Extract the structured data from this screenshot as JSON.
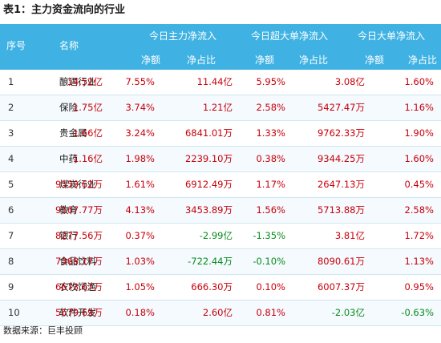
{
  "title": "表1：主力资金流向的行业",
  "header": {
    "col_index": "序号",
    "col_name": "名称",
    "group_main": "今日主力净流入",
    "group_super": "今日超大单净流入",
    "group_large": "今日大单净流入",
    "net": "净额",
    "ratio": "净占比"
  },
  "rows": [
    {
      "no": "1",
      "name": "酿酒行业",
      "main_net": "14.52亿",
      "main_ratio": "7.55%",
      "super_net": "11.44亿",
      "super_ratio": "5.95%",
      "large_net": "3.08亿",
      "large_ratio": "1.60%",
      "super_neg": false,
      "large_neg": false
    },
    {
      "no": "2",
      "name": "保险",
      "main_net": "1.75亿",
      "main_ratio": "3.74%",
      "super_net": "1.21亿",
      "super_ratio": "2.58%",
      "large_net": "5427.47万",
      "large_ratio": "1.16%",
      "super_neg": false,
      "large_neg": false
    },
    {
      "no": "3",
      "name": "贵金属",
      "main_net": "1.66亿",
      "main_ratio": "3.24%",
      "super_net": "6841.01万",
      "super_ratio": "1.33%",
      "large_net": "9762.33万",
      "large_ratio": "1.90%",
      "super_neg": false,
      "large_neg": false
    },
    {
      "no": "4",
      "name": "中药",
      "main_net": "1.16亿",
      "main_ratio": "1.98%",
      "super_net": "2239.10万",
      "super_ratio": "0.38%",
      "large_net": "9344.25万",
      "large_ratio": "1.60%",
      "super_neg": false,
      "large_neg": false
    },
    {
      "no": "5",
      "name": "煤炭行业",
      "main_net": "9559.62万",
      "main_ratio": "1.61%",
      "super_net": "6912.49万",
      "super_ratio": "1.17%",
      "large_net": "2647.13万",
      "large_ratio": "0.45%",
      "super_neg": false,
      "large_neg": false
    },
    {
      "no": "6",
      "name": "教育",
      "main_net": "9167.77万",
      "main_ratio": "4.13%",
      "super_net": "3453.89万",
      "super_ratio": "1.56%",
      "large_net": "5713.88万",
      "large_ratio": "2.58%",
      "super_neg": false,
      "large_neg": false
    },
    {
      "no": "7",
      "name": "银行",
      "main_net": "8277.56万",
      "main_ratio": "0.37%",
      "super_net": "-2.99亿",
      "super_ratio": "-1.35%",
      "large_net": "3.81亿",
      "large_ratio": "1.72%",
      "super_neg": true,
      "large_neg": false
    },
    {
      "no": "8",
      "name": "食品饮料",
      "main_net": "7368.17万",
      "main_ratio": "1.03%",
      "super_net": "-722.44万",
      "super_ratio": "-0.10%",
      "large_net": "8090.61万",
      "large_ratio": "1.13%",
      "super_neg": true,
      "large_neg": false
    },
    {
      "no": "9",
      "name": "农牧饲渔",
      "main_net": "6673.67万",
      "main_ratio": "1.05%",
      "super_net": "666.30万",
      "super_ratio": "0.10%",
      "large_net": "6007.37万",
      "large_ratio": "0.95%",
      "super_neg": false,
      "large_neg": false
    },
    {
      "no": "10",
      "name": "软件开发",
      "main_net": "5679.69万",
      "main_ratio": "0.18%",
      "super_net": "2.60亿",
      "super_ratio": "0.81%",
      "large_net": "-2.03亿",
      "large_ratio": "-0.63%",
      "super_neg": false,
      "large_neg": true
    }
  ],
  "footer": "数据来源：巨丰投顾",
  "colors": {
    "header_bg": "#3fb2e3",
    "positive": "#c8000b",
    "negative": "#0a8a1f"
  }
}
